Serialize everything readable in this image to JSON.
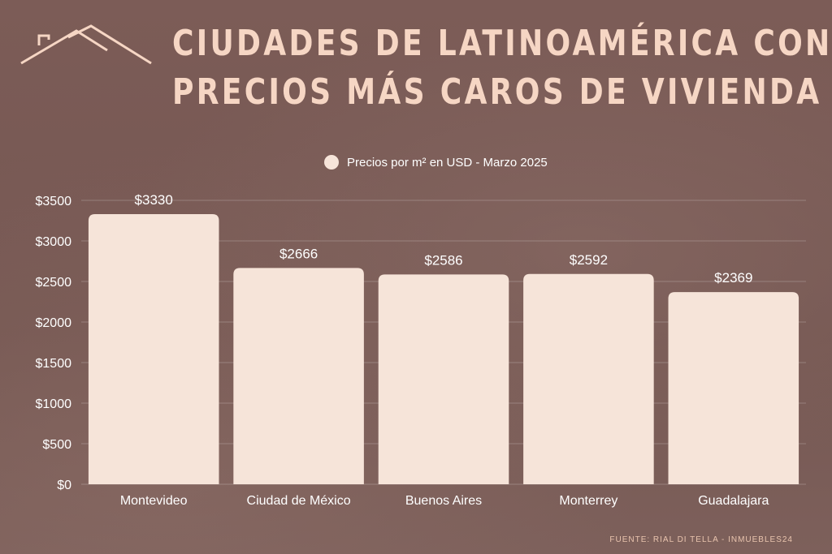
{
  "header": {
    "title_line1": "CIUDADES DE LATINOAMÉRICA CON",
    "title_line2": "PRECIOS MÁS CAROS DE VIVIENDA",
    "logo_icon": "house-roof-icon"
  },
  "footer": {
    "source": "FUENTE:  RIAL DI TELLA - INMUEBLES24"
  },
  "colors": {
    "background": "#7a5a55",
    "bar": "#f6e4d9",
    "accent": "#f6d6c4"
  },
  "chart_data": {
    "type": "bar",
    "title": "CIUDADES DE LATINOAMÉRICA CON PRECIOS MÁS CAROS DE VIVIENDA",
    "legend": [
      "Precios por m² en USD - Marzo 2025"
    ],
    "legend_position": "top-center",
    "categories": [
      "Montevideo",
      "Ciudad de México",
      "Buenos Aires",
      "Monterrey",
      "Guadalajara"
    ],
    "values": [
      3330,
      2666,
      2586,
      2592,
      2369
    ],
    "value_labels": [
      "$3330",
      "$2666",
      "$2586",
      "$2592",
      "$2369"
    ],
    "yticks": [
      0,
      500,
      1000,
      1500,
      2000,
      2500,
      3000,
      3500
    ],
    "ytick_labels": [
      "$0",
      "$500",
      "$1000",
      "$1500",
      "$2000",
      "$2500",
      "$3000",
      "$3500"
    ],
    "ylim": [
      0,
      3500
    ],
    "xlabel": "",
    "ylabel": "",
    "grid": true
  }
}
